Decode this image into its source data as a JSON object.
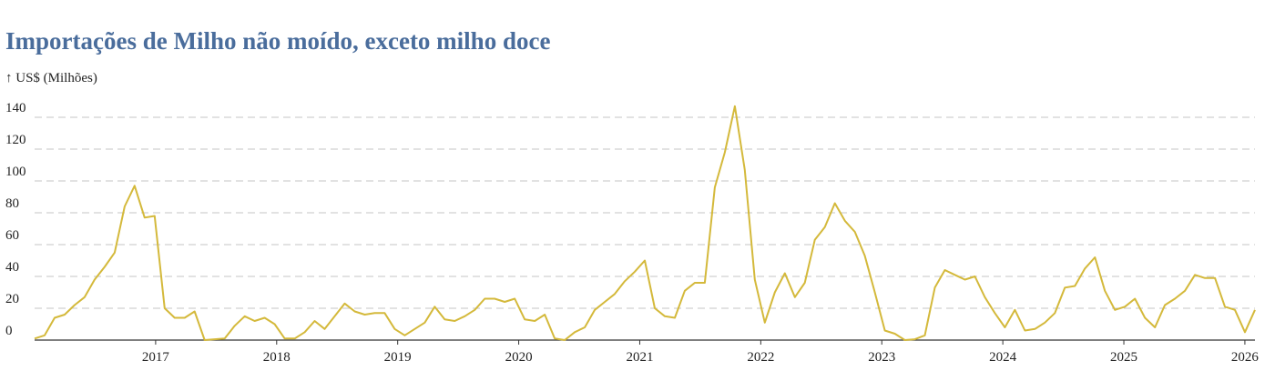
{
  "page": {
    "title": "Importações de Milho não moído, exceto milho doce",
    "unit_label": "↑ US$ (Milhões)"
  },
  "chart_data": {
    "type": "line",
    "title": "Importações de Milho não moído, exceto milho doce",
    "xlabel": "",
    "ylabel": "US$ (Milhões)",
    "ylim": [
      0,
      140
    ],
    "y_ticks": [
      0,
      20,
      40,
      60,
      80,
      100,
      120,
      140
    ],
    "x_ticks": [
      "2017",
      "2018",
      "2019",
      "2020",
      "2021",
      "2022",
      "2023",
      "2024",
      "2025",
      "2026"
    ],
    "x_start": "2016-01",
    "x_end": "2026-02",
    "grid": true,
    "line_color": "#d4b93b",
    "series": [
      {
        "values": [
          1,
          3,
          14,
          16,
          22,
          27,
          38,
          46,
          55,
          84,
          97,
          77,
          78,
          20,
          14,
          14,
          18,
          0,
          0.5,
          1,
          9,
          15,
          12,
          14,
          10,
          1,
          1,
          5,
          12,
          7,
          15,
          23,
          18,
          16,
          17,
          17,
          7,
          3,
          7,
          11,
          21,
          13,
          12,
          15,
          19,
          26,
          26,
          24,
          26,
          13,
          12,
          16,
          1,
          0,
          5,
          8,
          19,
          24,
          29,
          37,
          43,
          50,
          20,
          15,
          14,
          31,
          36,
          36,
          96,
          118,
          147,
          107,
          38,
          11,
          30,
          42,
          27,
          36,
          63,
          71,
          86,
          75,
          68,
          53,
          30,
          6,
          4,
          0,
          0.5,
          3,
          33,
          44,
          41,
          38,
          40,
          27,
          17,
          8,
          19,
          6,
          7,
          11,
          17,
          33,
          34,
          45,
          52,
          31,
          19,
          21,
          26,
          14,
          8,
          22,
          26,
          31,
          41,
          39,
          39,
          21,
          19,
          5,
          19
        ]
      }
    ]
  }
}
